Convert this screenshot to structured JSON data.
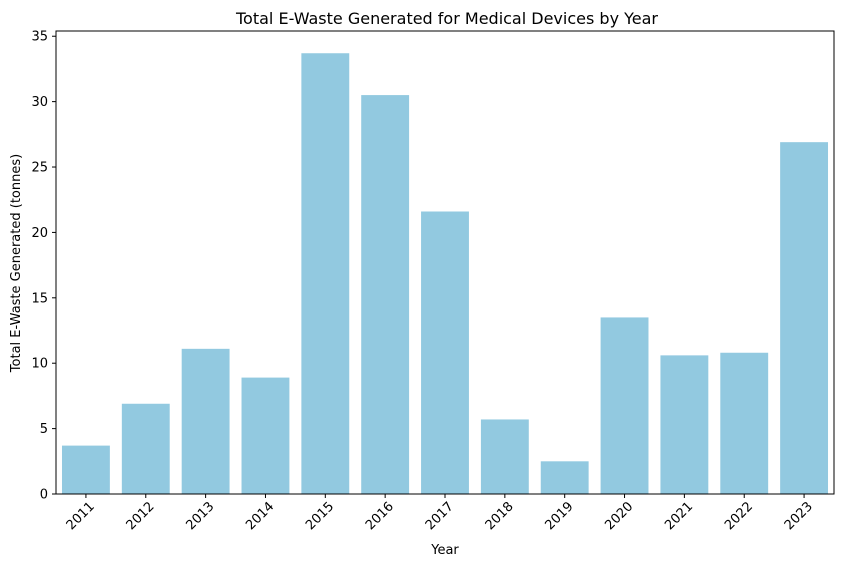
{
  "chart_data": {
    "type": "bar",
    "title": "Total E-Waste Generated for Medical Devices by Year",
    "xlabel": "Year",
    "ylabel": "Total E-Waste Generated (tonnes)",
    "categories": [
      "2011",
      "2012",
      "2013",
      "2014",
      "2015",
      "2016",
      "2017",
      "2018",
      "2019",
      "2020",
      "2021",
      "2022",
      "2023"
    ],
    "values": [
      3.7,
      6.9,
      11.1,
      8.9,
      33.7,
      30.5,
      21.6,
      5.7,
      2.5,
      13.5,
      10.6,
      10.8,
      26.9
    ],
    "ylim": [
      0,
      35.4
    ],
    "yticks": [
      0,
      5,
      10,
      15,
      20,
      25,
      30,
      35
    ],
    "bar_color": "#92c9e0",
    "grid": false,
    "legend": "none",
    "x_tick_rotation": 45
  }
}
